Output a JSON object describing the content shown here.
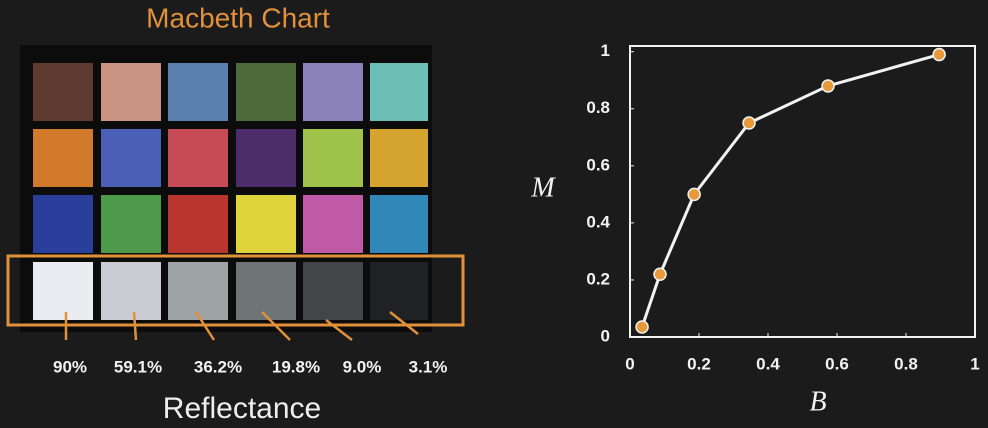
{
  "macbeth": {
    "title": "Macbeth Chart",
    "reflectance_labels": [
      "90%",
      "59.1%",
      "36.2%",
      "19.8%",
      "9.0%",
      "3.1%"
    ],
    "caption": "Reflectance"
  },
  "chart_data": {
    "type": "line",
    "x": [
      0.035,
      0.087,
      0.186,
      0.345,
      0.574,
      0.896
    ],
    "values": [
      0.035,
      0.22,
      0.5,
      0.75,
      0.88,
      0.99
    ],
    "xlim": [
      0,
      1
    ],
    "ylim": [
      0,
      1.02
    ],
    "xticks": [
      0,
      0.2,
      0.4,
      0.6,
      0.8,
      1
    ],
    "yticks": [
      0,
      0.2,
      0.4,
      0.6,
      0.8,
      1
    ],
    "xlabel": "B",
    "ylabel": "M",
    "color": "#f2f2f2",
    "marker_color": "#e89a3a"
  }
}
